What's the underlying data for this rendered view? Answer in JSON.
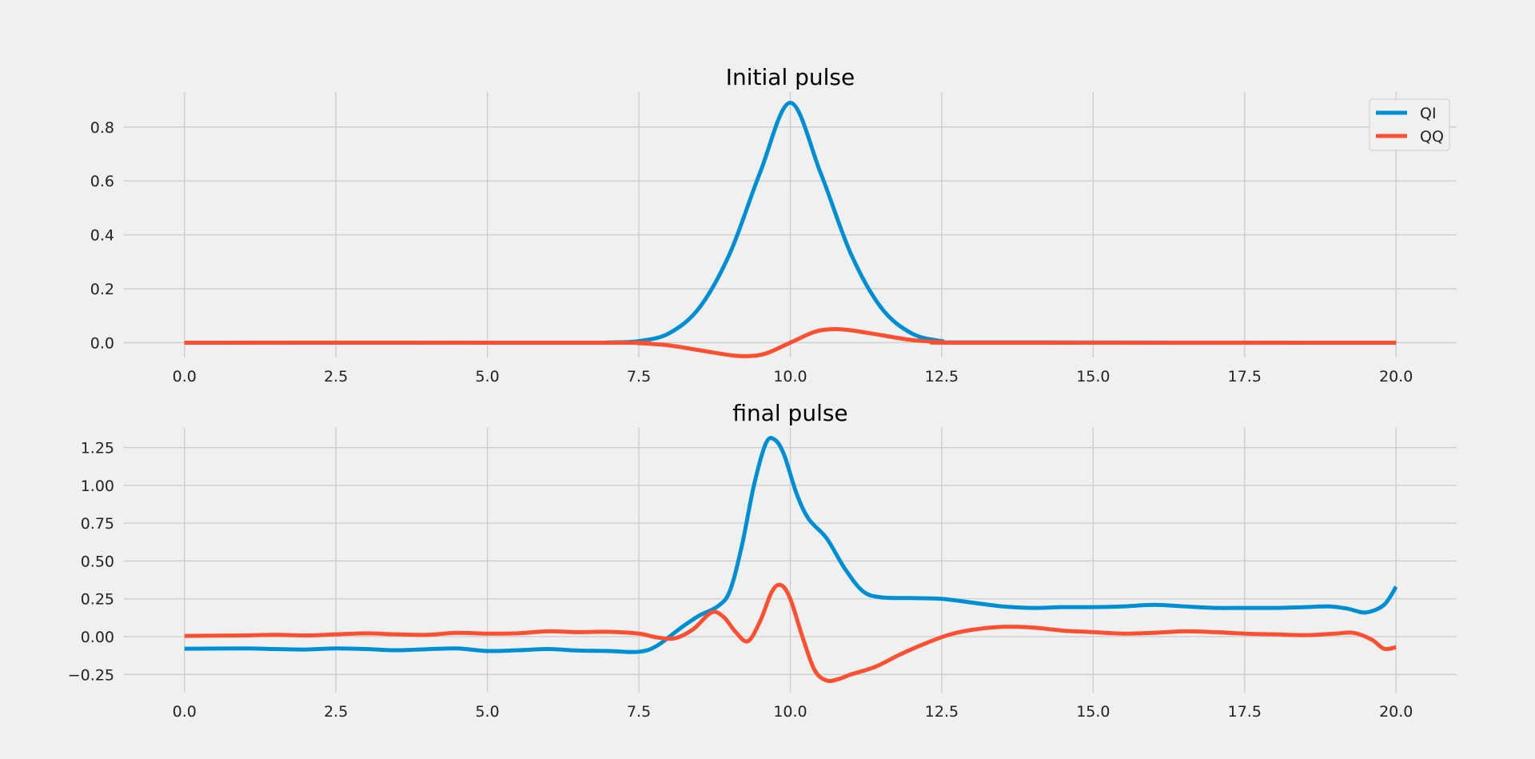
{
  "chart_data": [
    {
      "type": "line",
      "title": "Initial pulse",
      "xlabel": "",
      "ylabel": "",
      "xlim": [
        -1.0,
        21.0
      ],
      "ylim": [
        -0.055,
        0.93
      ],
      "xticks": [
        "0.0",
        "2.5",
        "5.0",
        "7.5",
        "10.0",
        "12.5",
        "15.0",
        "17.5",
        "20.0"
      ],
      "yticks": [
        "0.0",
        "0.2",
        "0.4",
        "0.6",
        "0.8"
      ],
      "grid": true,
      "legend": {
        "placement": "top-right",
        "entries": [
          "QI",
          "QQ"
        ]
      },
      "series": [
        {
          "name": "QI",
          "color": "#008fd5",
          "x": [
            0,
            6.5,
            7,
            7.5,
            8,
            8.5,
            9,
            9.5,
            10,
            10.5,
            11,
            11.5,
            12,
            12.5,
            13,
            20
          ],
          "y": [
            0,
            0,
            0.001,
            0.006,
            0.035,
            0.13,
            0.33,
            0.63,
            0.89,
            0.63,
            0.33,
            0.13,
            0.035,
            0.006,
            0.001,
            0
          ]
        },
        {
          "name": "QQ",
          "color": "#fc4f30",
          "x": [
            0,
            7,
            7.5,
            8,
            8.5,
            9,
            9.3,
            9.6,
            10,
            10.4,
            10.7,
            11,
            11.5,
            12,
            12.5,
            13,
            20
          ],
          "y": [
            0,
            0,
            -0.002,
            -0.01,
            -0.028,
            -0.046,
            -0.05,
            -0.04,
            0,
            0.04,
            0.05,
            0.046,
            0.028,
            0.01,
            0.002,
            0,
            0
          ]
        }
      ]
    },
    {
      "type": "line",
      "title": "final pulse",
      "xlabel": "",
      "ylabel": "",
      "xlim": [
        -1.0,
        21.0
      ],
      "ylim": [
        -0.37,
        1.38
      ],
      "xticks": [
        "0.0",
        "2.5",
        "5.0",
        "7.5",
        "10.0",
        "12.5",
        "15.0",
        "17.5",
        "20.0"
      ],
      "yticks": [
        "−0.25",
        "0.00",
        "0.25",
        "0.50",
        "0.75",
        "1.00",
        "1.25"
      ],
      "grid": true,
      "series": [
        {
          "name": "QI",
          "color": "#008fd5",
          "x": [
            0,
            1,
            1.5,
            2,
            2.5,
            3,
            3.5,
            4,
            4.5,
            5,
            5.5,
            6,
            6.5,
            7,
            7.5,
            7.8,
            8.2,
            8.5,
            8.8,
            9.0,
            9.2,
            9.4,
            9.6,
            9.75,
            9.9,
            10.1,
            10.3,
            10.6,
            10.9,
            11.2,
            11.5,
            12,
            12.5,
            13,
            13.5,
            14,
            14.5,
            15,
            15.5,
            16,
            16.5,
            17,
            17.5,
            18,
            18.5,
            18.9,
            19.2,
            19.5,
            19.8,
            20
          ],
          "y": [
            -0.08,
            -0.078,
            -0.082,
            -0.085,
            -0.078,
            -0.082,
            -0.09,
            -0.083,
            -0.078,
            -0.095,
            -0.09,
            -0.082,
            -0.092,
            -0.095,
            -0.1,
            -0.06,
            0.06,
            0.14,
            0.2,
            0.3,
            0.6,
            1.0,
            1.28,
            1.3,
            1.2,
            0.95,
            0.78,
            0.65,
            0.45,
            0.3,
            0.26,
            0.255,
            0.25,
            0.225,
            0.2,
            0.19,
            0.195,
            0.195,
            0.2,
            0.21,
            0.2,
            0.19,
            0.19,
            0.19,
            0.195,
            0.2,
            0.185,
            0.16,
            0.21,
            0.33
          ]
        },
        {
          "name": "QQ",
          "color": "#fc4f30",
          "x": [
            0,
            1,
            1.5,
            2,
            2.5,
            3,
            3.5,
            4,
            4.5,
            5,
            5.5,
            6,
            6.5,
            7,
            7.5,
            7.8,
            8.1,
            8.4,
            8.7,
            8.9,
            9.1,
            9.3,
            9.5,
            9.7,
            9.85,
            10.0,
            10.2,
            10.4,
            10.6,
            10.8,
            11.0,
            11.4,
            11.8,
            12.2,
            12.6,
            13,
            13.5,
            14,
            14.5,
            15,
            15.5,
            16,
            16.5,
            17,
            17.5,
            18,
            18.5,
            19,
            19.3,
            19.6,
            19.8,
            20
          ],
          "y": [
            0.005,
            0.008,
            0.012,
            0.008,
            0.015,
            0.022,
            0.015,
            0.012,
            0.025,
            0.02,
            0.022,
            0.035,
            0.03,
            0.032,
            0.02,
            -0.005,
            -0.01,
            0.05,
            0.16,
            0.13,
            0.03,
            -0.03,
            0.1,
            0.3,
            0.34,
            0.25,
            0.0,
            -0.22,
            -0.29,
            -0.28,
            -0.25,
            -0.2,
            -0.12,
            -0.05,
            0.01,
            0.045,
            0.065,
            0.06,
            0.04,
            0.03,
            0.02,
            0.025,
            0.035,
            0.03,
            0.02,
            0.015,
            0.01,
            0.02,
            0.025,
            -0.02,
            -0.08,
            -0.07
          ]
        }
      ]
    }
  ]
}
